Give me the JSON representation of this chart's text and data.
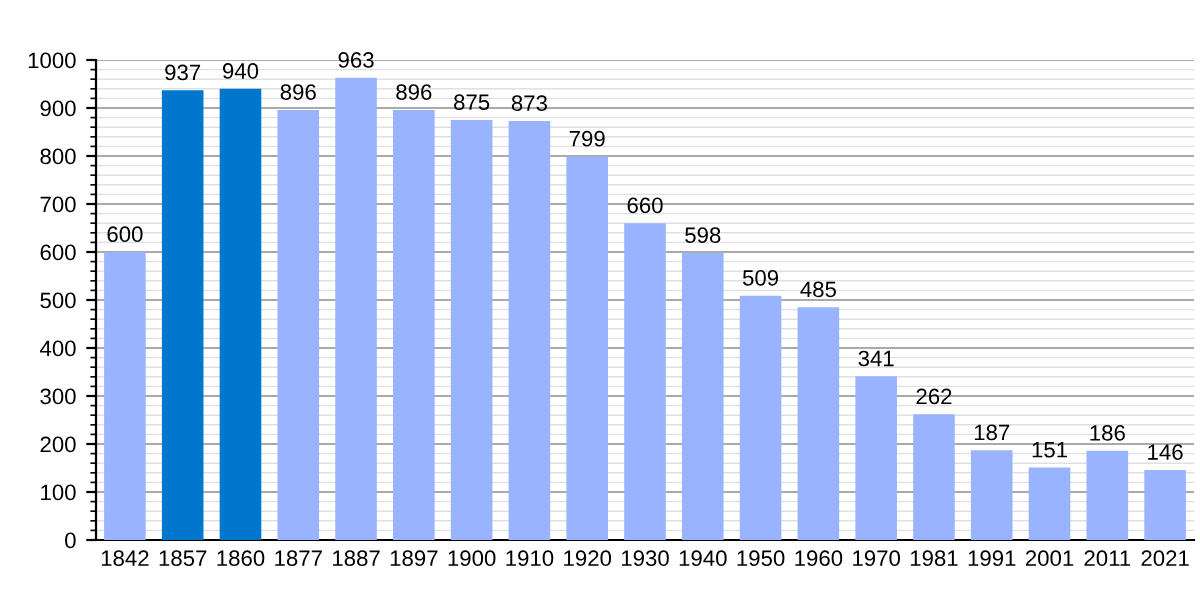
{
  "chart_data": {
    "type": "bar",
    "categories": [
      "1842",
      "1857",
      "1860",
      "1877",
      "1887",
      "1897",
      "1900",
      "1910",
      "1920",
      "1930",
      "1940",
      "1950",
      "1960",
      "1970",
      "1981",
      "1991",
      "2001",
      "2011",
      "2021"
    ],
    "values": [
      600,
      937,
      940,
      896,
      963,
      896,
      875,
      873,
      799,
      660,
      598,
      509,
      485,
      341,
      262,
      187,
      151,
      186,
      146
    ],
    "colors": [
      "#99b3ff",
      "#0077cc",
      "#0077cc",
      "#99b3ff",
      "#99b3ff",
      "#99b3ff",
      "#99b3ff",
      "#99b3ff",
      "#99b3ff",
      "#99b3ff",
      "#99b3ff",
      "#99b3ff",
      "#99b3ff",
      "#99b3ff",
      "#99b3ff",
      "#99b3ff",
      "#99b3ff",
      "#99b3ff",
      "#99b3ff"
    ],
    "data_labels": true,
    "ylim": [
      0,
      1000
    ],
    "yticks": [
      0,
      {
        "value": 20,
        "label": null
      },
      {
        "value": 40,
        "label": null
      },
      {
        "value": 60,
        "label": null
      },
      {
        "value": 80,
        "label": null
      },
      100,
      {
        "value": 120,
        "label": null
      },
      {
        "value": 140,
        "label": null
      },
      {
        "value": 160,
        "label": null
      },
      {
        "value": 180,
        "label": null
      },
      200,
      {
        "value": 220,
        "label": null
      },
      {
        "value": 240,
        "label": null
      },
      {
        "value": 260,
        "label": null
      },
      {
        "value": 280,
        "label": null
      },
      300,
      {
        "value": 320,
        "label": null
      },
      {
        "value": 340,
        "label": null
      },
      {
        "value": 360,
        "label": null
      },
      {
        "value": 380,
        "label": null
      },
      400,
      {
        "value": 420,
        "label": null
      },
      {
        "value": 440,
        "label": null
      },
      {
        "value": 460,
        "label": null
      },
      {
        "value": 480,
        "label": null
      },
      500,
      {
        "value": 520,
        "label": null
      },
      {
        "value": 540,
        "label": null
      },
      {
        "value": 560,
        "label": null
      },
      {
        "value": 580,
        "label": null
      },
      600,
      {
        "value": 620,
        "label": null
      },
      {
        "value": 640,
        "label": null
      },
      {
        "value": 660,
        "label": null
      },
      {
        "value": 680,
        "label": null
      },
      700,
      {
        "value": 720,
        "label": null
      },
      {
        "value": 740,
        "label": null
      },
      {
        "value": 760,
        "label": null
      },
      {
        "value": 780,
        "label": null
      },
      800,
      {
        "value": 820,
        "label": null
      },
      {
        "value": 840,
        "label": null
      },
      {
        "value": 860,
        "label": null
      },
      {
        "value": 880,
        "label": null
      },
      900,
      {
        "value": 920,
        "label": null
      },
      {
        "value": 940,
        "label": null
      },
      {
        "value": 960,
        "label": null
      },
      {
        "value": 980,
        "label": null
      },
      1000
    ],
    "grid": "y"
  }
}
